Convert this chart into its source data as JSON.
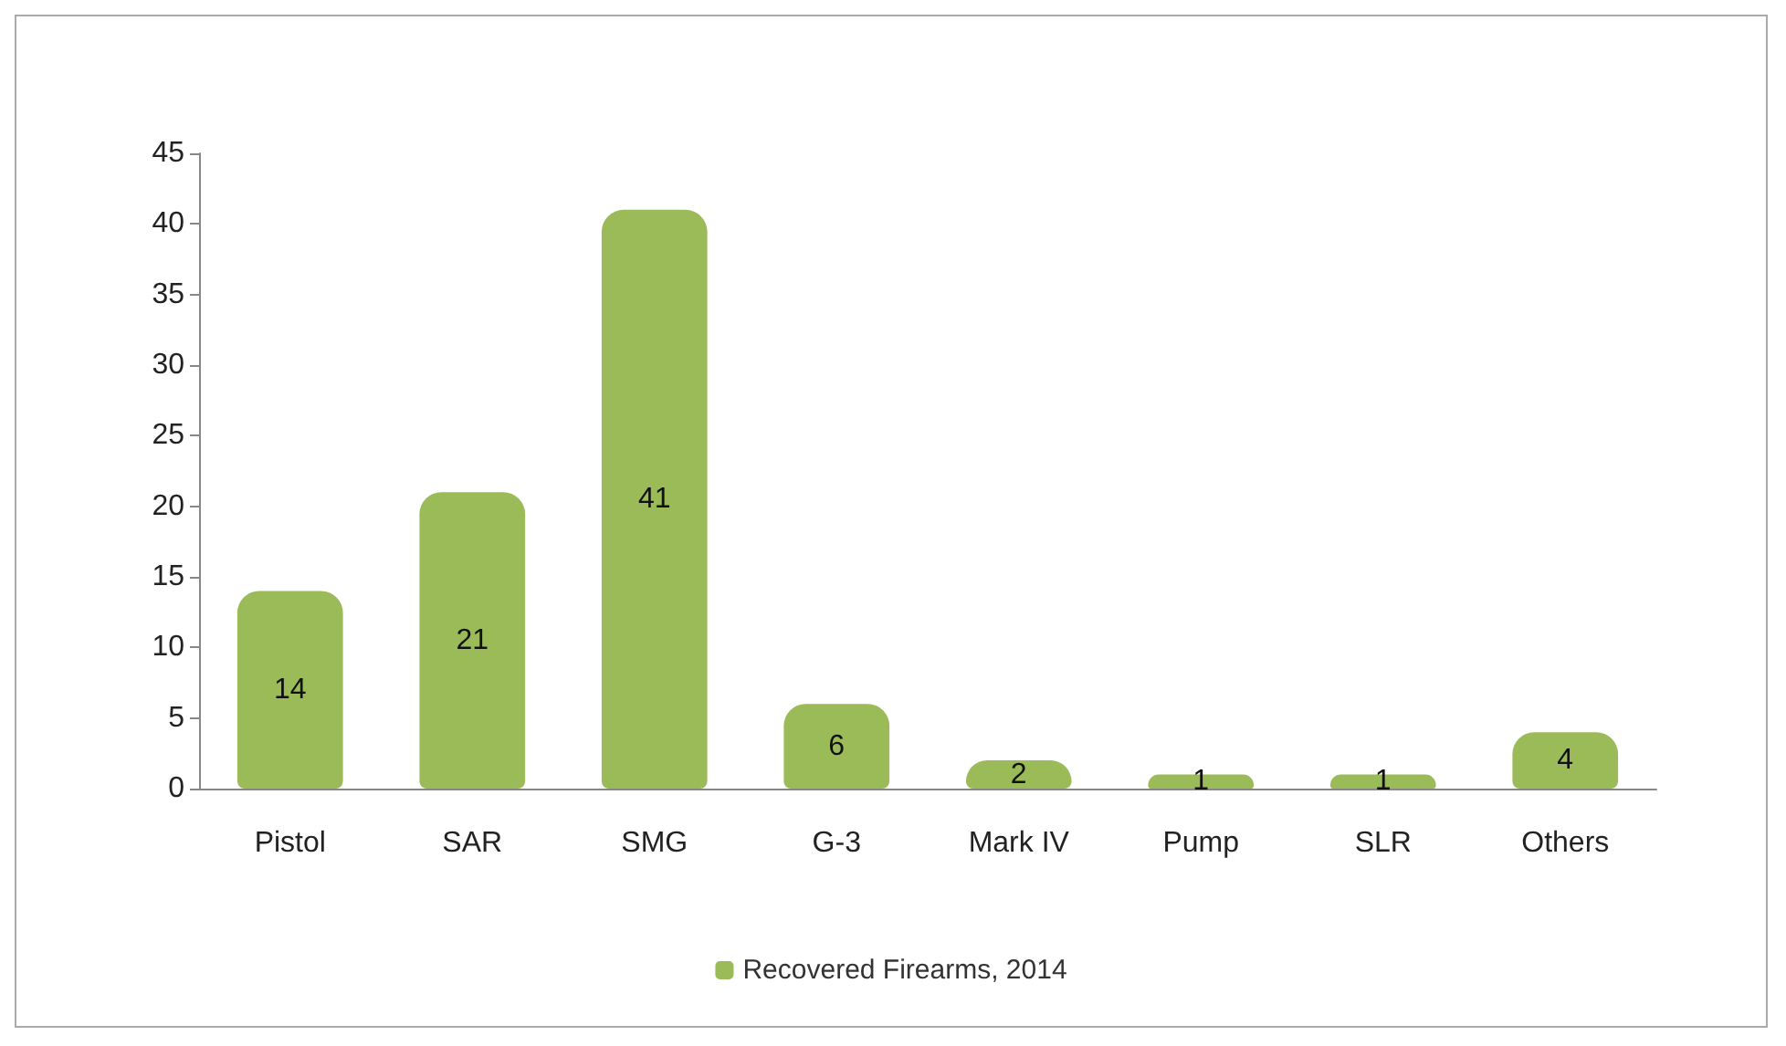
{
  "chart_data": {
    "type": "bar",
    "categories": [
      "Pistol",
      "SAR",
      "SMG",
      "G-3",
      "Mark IV",
      "Pump",
      "SLR",
      "Others"
    ],
    "series": [
      {
        "name": "Recovered Firearms, 2014",
        "color": "#9bbb59",
        "values": [
          14,
          21,
          41,
          6,
          2,
          1,
          1,
          4
        ]
      }
    ],
    "ylim": [
      0,
      45
    ],
    "yticks": [
      0,
      5,
      10,
      15,
      20,
      25,
      30,
      35,
      40,
      45
    ],
    "grid": false,
    "legend": "bottom",
    "data_labels": true
  }
}
